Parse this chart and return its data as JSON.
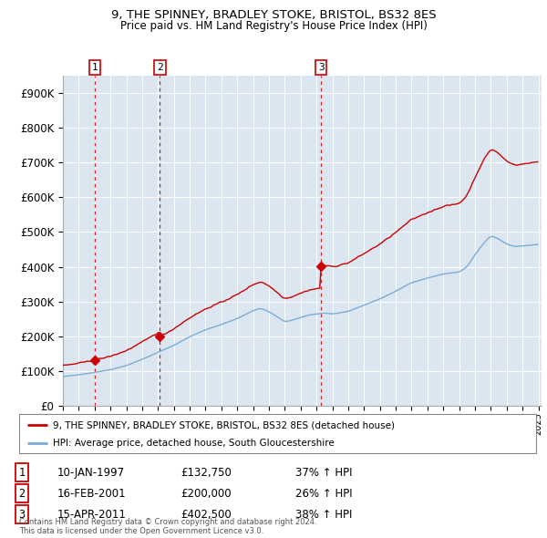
{
  "title_line1": "9, THE SPINNEY, BRADLEY STOKE, BRISTOL, BS32 8ES",
  "title_line2": "Price paid vs. HM Land Registry's House Price Index (HPI)",
  "plot_bg_color": "#dce6f1",
  "ylim": [
    0,
    950000
  ],
  "yticks": [
    0,
    100000,
    200000,
    300000,
    400000,
    500000,
    600000,
    700000,
    800000,
    900000
  ],
  "ytick_labels": [
    "£0",
    "£100K",
    "£200K",
    "£300K",
    "£400K",
    "£500K",
    "£600K",
    "£700K",
    "£800K",
    "£900K"
  ],
  "sale_year_floats": [
    1997.0278,
    2001.1222,
    2011.2889
  ],
  "sale_prices": [
    132750,
    200000,
    402500
  ],
  "sale_labels": [
    "1",
    "2",
    "3"
  ],
  "legend_line1": "9, THE SPINNEY, BRADLEY STOKE, BRISTOL, BS32 8ES (detached house)",
  "legend_line2": "HPI: Average price, detached house, South Gloucestershire",
  "table_rows": [
    [
      "1",
      "10-JAN-1997",
      "£132,750",
      "37% ↑ HPI"
    ],
    [
      "2",
      "16-FEB-2001",
      "£200,000",
      "26% ↑ HPI"
    ],
    [
      "3",
      "15-APR-2011",
      "£402,500",
      "38% ↑ HPI"
    ]
  ],
  "footnote": "Contains HM Land Registry data © Crown copyright and database right 2024.\nThis data is licensed under the Open Government Licence v3.0.",
  "red_line_color": "#cc0000",
  "blue_line_color": "#7aadd4",
  "marker_color": "#cc0000",
  "dashed_line_color": "#cc0000"
}
